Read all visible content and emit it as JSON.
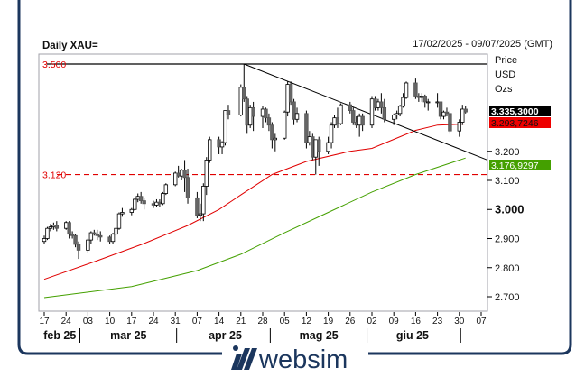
{
  "header": {
    "title": "Daily XAU=",
    "date_range": "17/02/2025 - 09/07/2025 (GMT)"
  },
  "legend_units": [
    "Price",
    "USD",
    "Ozs"
  ],
  "brand": {
    "name": "websim",
    "color": "#1b365d"
  },
  "chart_data": {
    "type": "candlestick",
    "title": "Daily XAU=",
    "ylabel": "Price USD Ozs",
    "ylim": [
      2.7,
      3.5
    ],
    "y_ticks": [
      "2.700",
      "2.800",
      "2.900",
      "3.000",
      "3.100",
      "3.200"
    ],
    "x_ticks": [
      {
        "date": "2025-02-17",
        "label": "17"
      },
      {
        "date": "2025-02-24",
        "label": "24"
      },
      {
        "date": "2025-03-03",
        "label": "03"
      },
      {
        "date": "2025-03-10",
        "label": "10"
      },
      {
        "date": "2025-03-17",
        "label": "17"
      },
      {
        "date": "2025-03-24",
        "label": "24"
      },
      {
        "date": "2025-03-31",
        "label": "31"
      },
      {
        "date": "2025-04-07",
        "label": "07"
      },
      {
        "date": "2025-04-14",
        "label": "14"
      },
      {
        "date": "2025-04-21",
        "label": "21"
      },
      {
        "date": "2025-04-28",
        "label": "28"
      },
      {
        "date": "2025-05-05",
        "label": "05"
      },
      {
        "date": "2025-05-12",
        "label": "12"
      },
      {
        "date": "2025-05-19",
        "label": "19"
      },
      {
        "date": "2025-05-26",
        "label": "26"
      },
      {
        "date": "2025-06-02",
        "label": "02"
      },
      {
        "date": "2025-06-09",
        "label": "09"
      },
      {
        "date": "2025-06-16",
        "label": "16"
      },
      {
        "date": "2025-06-23",
        "label": "23"
      },
      {
        "date": "2025-06-30",
        "label": "30"
      },
      {
        "date": "2025-07-07",
        "label": "07"
      }
    ],
    "months": [
      {
        "label": "feb 25",
        "center": "2025-02-22",
        "end": "2025-03-01"
      },
      {
        "label": "mar 25",
        "center": "2025-03-16",
        "end": "2025-04-01"
      },
      {
        "label": "apr 25",
        "center": "2025-04-16",
        "end": "2025-05-01"
      },
      {
        "label": "mag 25",
        "center": "2025-05-16",
        "end": "2025-06-01"
      },
      {
        "label": "giu 25",
        "center": "2025-06-15",
        "end": "2025-07-01"
      }
    ],
    "levels": [
      {
        "label": "3.500",
        "value": 3.5,
        "style": "solid",
        "color": "#000000",
        "label_color": "#e00000"
      },
      {
        "label": "3.120",
        "value": 3.12,
        "style": "dashed",
        "color": "#e00000",
        "label_color": "#e00000"
      }
    ],
    "trendline": {
      "from": {
        "date": "2025-04-22",
        "value": 3.5
      },
      "to": {
        "date": "2025-07-09",
        "value": 3.17
      }
    },
    "last_values": [
      {
        "label": "3.335,3000",
        "bg": "#000000",
        "fg": "#ffffff",
        "value": 3.3353
      },
      {
        "label": "3.293,7246",
        "bg": "#ee0000",
        "fg": "#111111",
        "value": 3.2937
      },
      {
        "label": "3.176,9297",
        "bg": "#44a000",
        "fg": "#ffffff",
        "value": 3.1769
      }
    ],
    "moving_averages": [
      {
        "color": "#e00000",
        "points": [
          [
            "2025-02-17",
            2.76
          ],
          [
            "2025-03-06",
            2.824
          ],
          [
            "2025-03-21",
            2.883
          ],
          [
            "2025-04-04",
            2.945
          ],
          [
            "2025-04-14",
            3.0
          ],
          [
            "2025-04-21",
            3.05
          ],
          [
            "2025-05-01",
            3.12
          ],
          [
            "2025-05-12",
            3.165
          ],
          [
            "2025-05-26",
            3.2
          ],
          [
            "2025-06-02",
            3.21
          ],
          [
            "2025-06-16",
            3.272
          ],
          [
            "2025-06-23",
            3.29
          ],
          [
            "2025-07-02",
            3.2937
          ]
        ]
      },
      {
        "color": "#44a000",
        "points": [
          [
            "2025-02-17",
            2.697
          ],
          [
            "2025-03-17",
            2.735
          ],
          [
            "2025-04-07",
            2.79
          ],
          [
            "2025-04-21",
            2.846
          ],
          [
            "2025-05-05",
            2.92
          ],
          [
            "2025-05-19",
            2.99
          ],
          [
            "2025-06-02",
            3.06
          ],
          [
            "2025-06-16",
            3.12
          ],
          [
            "2025-07-02",
            3.1769
          ]
        ]
      }
    ],
    "candles": [
      [
        "2025-02-17",
        2.89,
        2.91,
        2.88,
        2.9
      ],
      [
        "2025-02-18",
        2.9,
        2.94,
        2.895,
        2.935
      ],
      [
        "2025-02-19",
        2.935,
        2.95,
        2.925,
        2.94
      ],
      [
        "2025-02-20",
        2.94,
        2.955,
        2.93,
        2.945
      ],
      [
        "2025-02-21",
        2.945,
        2.96,
        2.925,
        2.935
      ],
      [
        "2025-02-24",
        2.935,
        2.96,
        2.93,
        2.955
      ],
      [
        "2025-02-25",
        2.955,
        2.96,
        2.9,
        2.915
      ],
      [
        "2025-02-26",
        2.915,
        2.925,
        2.9,
        2.91
      ],
      [
        "2025-02-27",
        2.91,
        2.915,
        2.87,
        2.88
      ],
      [
        "2025-02-28",
        2.88,
        2.89,
        2.83,
        2.86
      ],
      [
        "2025-03-03",
        2.86,
        2.9,
        2.85,
        2.895
      ],
      [
        "2025-03-04",
        2.895,
        2.925,
        2.88,
        2.92
      ],
      [
        "2025-03-05",
        2.92,
        2.93,
        2.91,
        2.915
      ],
      [
        "2025-03-06",
        2.915,
        2.93,
        2.895,
        2.91
      ],
      [
        "2025-03-07",
        2.91,
        2.925,
        2.89,
        2.905
      ],
      [
        "2025-03-10",
        2.905,
        2.91,
        2.88,
        2.89
      ],
      [
        "2025-03-11",
        2.89,
        2.92,
        2.88,
        2.915
      ],
      [
        "2025-03-12",
        2.915,
        2.94,
        2.905,
        2.935
      ],
      [
        "2025-03-13",
        2.935,
        2.99,
        2.93,
        2.985
      ],
      [
        "2025-03-14",
        2.985,
        3.005,
        2.975,
        2.99
      ],
      [
        "2025-03-17",
        2.99,
        3.005,
        2.98,
        3.0
      ],
      [
        "2025-03-18",
        3.0,
        3.04,
        2.995,
        3.035
      ],
      [
        "2025-03-19",
        3.035,
        3.055,
        3.025,
        3.045
      ],
      [
        "2025-03-20",
        3.045,
        3.06,
        3.02,
        3.03
      ],
      [
        "2025-03-21",
        3.03,
        3.04,
        3.0,
        3.02
      ],
      [
        "2025-03-24",
        3.02,
        3.03,
        3.005,
        3.015
      ],
      [
        "2025-03-25",
        3.015,
        3.035,
        3.01,
        3.025
      ],
      [
        "2025-03-26",
        3.025,
        3.035,
        3.01,
        3.02
      ],
      [
        "2025-03-27",
        3.02,
        3.06,
        3.015,
        3.055
      ],
      [
        "2025-03-28",
        3.055,
        3.09,
        3.05,
        3.085
      ],
      [
        "2025-03-31",
        3.085,
        3.13,
        3.08,
        3.125
      ],
      [
        "2025-04-01",
        3.125,
        3.15,
        3.11,
        3.115
      ],
      [
        "2025-04-02",
        3.115,
        3.14,
        3.1,
        3.135
      ],
      [
        "2025-04-03",
        3.135,
        3.17,
        3.06,
        3.11
      ],
      [
        "2025-04-04",
        3.11,
        3.14,
        3.02,
        3.04
      ],
      [
        "2025-04-07",
        3.04,
        3.06,
        2.97,
        2.98
      ],
      [
        "2025-04-08",
        2.98,
        3.02,
        2.96,
        2.985
      ],
      [
        "2025-04-09",
        2.985,
        3.09,
        2.96,
        3.08
      ],
      [
        "2025-04-10",
        3.08,
        3.18,
        3.05,
        3.17
      ],
      [
        "2025-04-11",
        3.17,
        3.25,
        3.16,
        3.24
      ],
      [
        "2025-04-14",
        3.24,
        3.25,
        3.19,
        3.215
      ],
      [
        "2025-04-15",
        3.215,
        3.235,
        3.19,
        3.23
      ],
      [
        "2025-04-16",
        3.23,
        3.34,
        3.22,
        3.34
      ],
      [
        "2025-04-17",
        3.34,
        3.36,
        3.31,
        3.325
      ],
      [
        "2025-04-21",
        3.325,
        3.43,
        3.32,
        3.42
      ],
      [
        "2025-04-22",
        3.42,
        3.5,
        3.37,
        3.38
      ],
      [
        "2025-04-23",
        3.38,
        3.39,
        3.26,
        3.29
      ],
      [
        "2025-04-24",
        3.29,
        3.36,
        3.28,
        3.35
      ],
      [
        "2025-04-25",
        3.35,
        3.37,
        3.27,
        3.32
      ],
      [
        "2025-04-28",
        3.32,
        3.355,
        3.28,
        3.345
      ],
      [
        "2025-04-29",
        3.345,
        3.35,
        3.3,
        3.315
      ],
      [
        "2025-04-30",
        3.315,
        3.33,
        3.27,
        3.29
      ],
      [
        "2025-05-01",
        3.29,
        3.3,
        3.21,
        3.24
      ],
      [
        "2025-05-02",
        3.24,
        3.26,
        3.2,
        3.245
      ],
      [
        "2025-05-05",
        3.245,
        3.34,
        3.24,
        3.335
      ],
      [
        "2025-05-06",
        3.335,
        3.44,
        3.32,
        3.43
      ],
      [
        "2025-05-07",
        3.43,
        3.44,
        3.36,
        3.37
      ],
      [
        "2025-05-08",
        3.37,
        3.38,
        3.29,
        3.31
      ],
      [
        "2025-05-09",
        3.31,
        3.35,
        3.3,
        3.33
      ],
      [
        "2025-05-12",
        3.33,
        3.34,
        3.21,
        3.23
      ],
      [
        "2025-05-13",
        3.23,
        3.27,
        3.22,
        3.25
      ],
      [
        "2025-05-14",
        3.25,
        3.26,
        3.17,
        3.18
      ],
      [
        "2025-05-15",
        3.18,
        3.24,
        3.12,
        3.24
      ],
      [
        "2025-05-16",
        3.24,
        3.25,
        3.15,
        3.2
      ],
      [
        "2025-05-19",
        3.2,
        3.25,
        3.19,
        3.23
      ],
      [
        "2025-05-20",
        3.23,
        3.3,
        3.21,
        3.29
      ],
      [
        "2025-05-21",
        3.29,
        3.325,
        3.28,
        3.315
      ],
      [
        "2025-05-22",
        3.315,
        3.35,
        3.28,
        3.295
      ],
      [
        "2025-05-23",
        3.295,
        3.365,
        3.29,
        3.36
      ],
      [
        "2025-05-26",
        3.36,
        3.37,
        3.33,
        3.34
      ],
      [
        "2025-05-27",
        3.34,
        3.35,
        3.29,
        3.3
      ],
      [
        "2025-05-28",
        3.3,
        3.32,
        3.28,
        3.29
      ],
      [
        "2025-05-29",
        3.29,
        3.33,
        3.25,
        3.32
      ],
      [
        "2025-05-30",
        3.32,
        3.33,
        3.27,
        3.29
      ],
      [
        "2025-06-02",
        3.29,
        3.39,
        3.28,
        3.38
      ],
      [
        "2025-06-03",
        3.38,
        3.39,
        3.34,
        3.35
      ],
      [
        "2025-06-04",
        3.35,
        3.38,
        3.34,
        3.37
      ],
      [
        "2025-06-05",
        3.37,
        3.4,
        3.33,
        3.35
      ],
      [
        "2025-06-06",
        3.35,
        3.38,
        3.3,
        3.31
      ],
      [
        "2025-06-09",
        3.31,
        3.33,
        3.29,
        3.325
      ],
      [
        "2025-06-10",
        3.325,
        3.34,
        3.31,
        3.33
      ],
      [
        "2025-06-11",
        3.33,
        3.36,
        3.32,
        3.355
      ],
      [
        "2025-06-12",
        3.355,
        3.4,
        3.35,
        3.385
      ],
      [
        "2025-06-13",
        3.385,
        3.44,
        3.38,
        3.435
      ],
      [
        "2025-06-16",
        3.435,
        3.45,
        3.38,
        3.39
      ],
      [
        "2025-06-17",
        3.39,
        3.4,
        3.37,
        3.385
      ],
      [
        "2025-06-18",
        3.385,
        3.4,
        3.37,
        3.39
      ],
      [
        "2025-06-19",
        3.39,
        3.395,
        3.35,
        3.37
      ],
      [
        "2025-06-20",
        3.37,
        3.38,
        3.34,
        3.37
      ],
      [
        "2025-06-23",
        3.37,
        3.4,
        3.35,
        3.37
      ],
      [
        "2025-06-24",
        3.37,
        3.37,
        3.31,
        3.32
      ],
      [
        "2025-06-25",
        3.32,
        3.34,
        3.31,
        3.335
      ],
      [
        "2025-06-26",
        3.335,
        3.35,
        3.32,
        3.33
      ],
      [
        "2025-06-27",
        3.33,
        3.34,
        3.26,
        3.27
      ],
      [
        "2025-06-30",
        3.27,
        3.31,
        3.25,
        3.3
      ],
      [
        "2025-07-01",
        3.3,
        3.36,
        3.29,
        3.345
      ],
      [
        "2025-07-02",
        3.345,
        3.355,
        3.33,
        3.3353
      ]
    ]
  }
}
